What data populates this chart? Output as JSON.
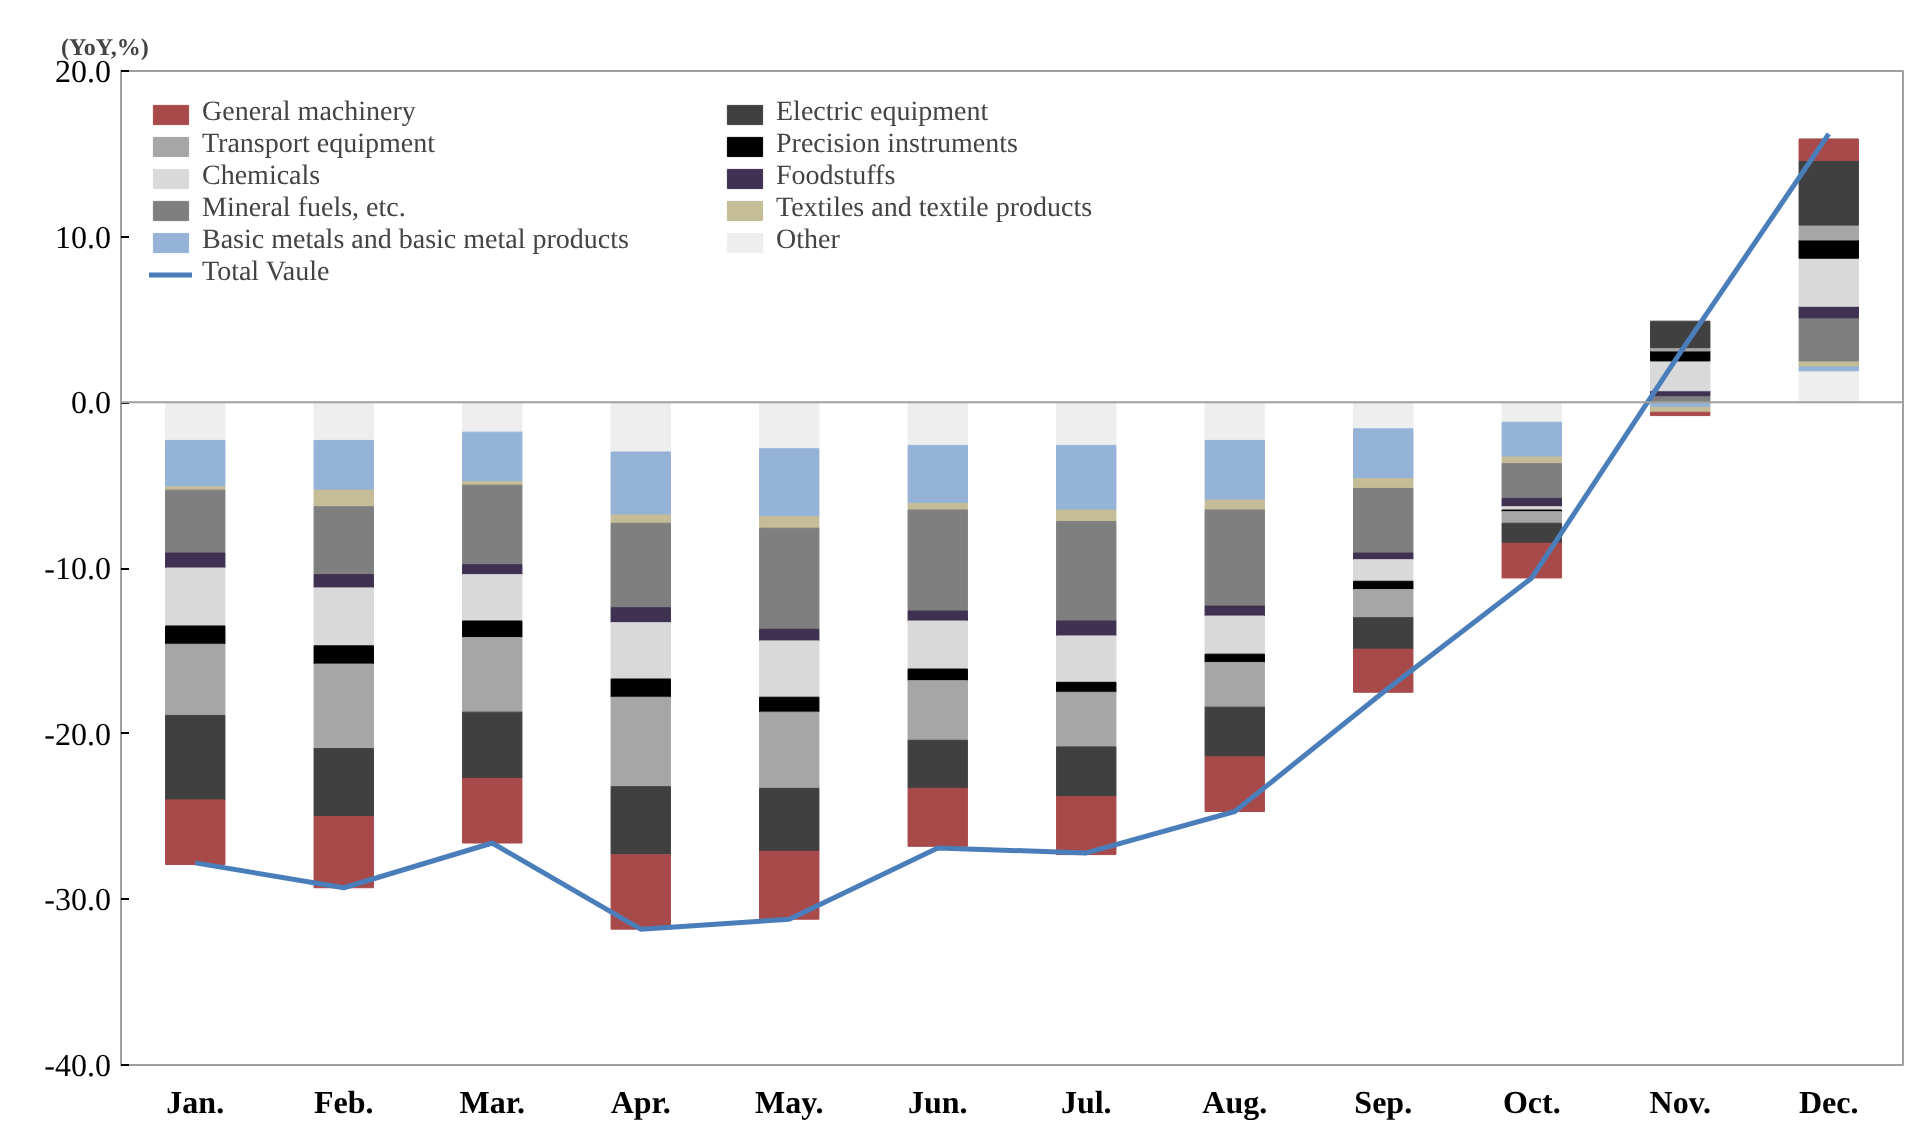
{
  "chart_data": {
    "type": "bar",
    "stacked": true,
    "ylabel": "(YoY,%)",
    "categories": [
      "Jan.",
      "Feb.",
      "Mar.",
      "Apr.",
      "May.",
      "Jun.",
      "Jul.",
      "Aug.",
      "Sep.",
      "Oct.",
      "Nov.",
      "Dec."
    ],
    "ylim": [
      -40,
      20
    ],
    "yticks": [
      {
        "value": -40,
        "label": "-40.0"
      },
      {
        "value": -30,
        "label": "-30.0"
      },
      {
        "value": -20,
        "label": "-20.0"
      },
      {
        "value": -10,
        "label": "-10.0"
      },
      {
        "value": 0,
        "label": "0.0"
      },
      {
        "value": 10,
        "label": "10.0"
      },
      {
        "value": 20,
        "label": "20.0"
      }
    ],
    "grid": false,
    "legend": "top left",
    "ref_lines": [
      {
        "axis": "y",
        "value": 0,
        "label": null,
        "color": "#a0a0a0"
      }
    ],
    "series": [
      {
        "name": "Other",
        "color": "#eeeeee",
        "values": [
          -2.3,
          -2.3,
          -1.8,
          -3.0,
          -2.8,
          -2.6,
          -2.6,
          -2.3,
          -1.6,
          -1.2,
          0,
          1.9
        ]
      },
      {
        "name": "Basic metals and basic metal products",
        "color": "#95b3d7",
        "values": [
          -2.8,
          -3.0,
          -3.0,
          -3.8,
          -4.1,
          -3.5,
          -3.9,
          -3.6,
          -3.0,
          -2.1,
          -0.3,
          0.3
        ]
      },
      {
        "name": "Textiles and textile products",
        "color": "#c4bd97",
        "values": [
          -0.2,
          -1.0,
          -0.2,
          -0.5,
          -0.7,
          -0.4,
          -0.7,
          -0.6,
          -0.6,
          -0.4,
          -0.3,
          0.3
        ]
      },
      {
        "name": "Mineral fuels, etc.",
        "color": "#7f7f7f",
        "values": [
          -3.8,
          -4.1,
          -4.8,
          -5.1,
          -6.1,
          -6.1,
          -6.0,
          -5.8,
          -3.9,
          -2.1,
          0.4,
          2.6
        ]
      },
      {
        "name": "Foodstuffs",
        "color": "#3f3151",
        "values": [
          -0.9,
          -0.8,
          -0.6,
          -0.9,
          -0.7,
          -0.6,
          -0.9,
          -0.6,
          -0.4,
          -0.5,
          0.3,
          0.7
        ]
      },
      {
        "name": "Chemicals",
        "color": "#d9d9d9",
        "values": [
          -3.5,
          -3.5,
          -2.8,
          -3.4,
          -3.4,
          -2.9,
          -2.8,
          -2.3,
          -1.3,
          -0.2,
          1.8,
          2.9
        ]
      },
      {
        "name": "Precision instruments",
        "color": "#000000",
        "values": [
          -1.1,
          -1.1,
          -1.0,
          -1.1,
          -0.9,
          -0.7,
          -0.6,
          -0.5,
          -0.5,
          -0.1,
          0.6,
          1.1
        ]
      },
      {
        "name": "Transport equipment",
        "color": "#a6a6a6",
        "values": [
          -4.3,
          -5.1,
          -4.5,
          -5.4,
          -4.6,
          -3.6,
          -3.3,
          -2.7,
          -1.7,
          -0.7,
          0.2,
          0.9
        ]
      },
      {
        "name": "Electric equipment",
        "color": "#404040",
        "values": [
          -5.1,
          -4.1,
          -4.0,
          -4.1,
          -3.8,
          -2.9,
          -3.0,
          -3.0,
          -1.9,
          -1.2,
          1.6,
          3.9
        ]
      },
      {
        "name": "General machinery",
        "color": "#a94a4a",
        "values": [
          -3.9,
          -4.3,
          -3.9,
          -4.5,
          -4.1,
          -3.5,
          -3.5,
          -3.3,
          -2.6,
          -2.1,
          -0.2,
          1.3
        ]
      },
      {
        "name": "Total Vaule",
        "type": "line",
        "color": "#4a7ebb",
        "values": [
          -27.8,
          -29.3,
          -26.6,
          -31.8,
          -31.2,
          -26.9,
          -27.2,
          -24.7,
          -17.5,
          -10.6,
          3.0,
          16.2
        ]
      }
    ]
  }
}
